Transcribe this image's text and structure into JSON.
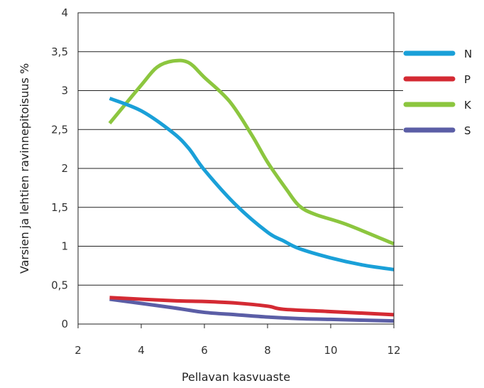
{
  "chart_data": {
    "type": "line",
    "xlabel": "Pellavan kasvuaste",
    "ylabel": "Varsien ja lehtien ravinnepitoisuus %",
    "xlim": [
      2,
      12
    ],
    "ylim": [
      0,
      4
    ],
    "x_ticks": [
      {
        "value": 2,
        "label": "2"
      },
      {
        "value": 4,
        "label": "4"
      },
      {
        "value": 6,
        "label": "6"
      },
      {
        "value": 8,
        "label": "8"
      },
      {
        "value": 10,
        "label": "10"
      },
      {
        "value": 12,
        "label": "12"
      }
    ],
    "y_ticks": [
      {
        "value": 0,
        "label": "0"
      },
      {
        "value": 0.5,
        "label": "0,5"
      },
      {
        "value": 1,
        "label": "1"
      },
      {
        "value": 1.5,
        "label": "1,5"
      },
      {
        "value": 2,
        "label": "2"
      },
      {
        "value": 2.5,
        "label": "2,5"
      },
      {
        "value": 3,
        "label": "3"
      },
      {
        "value": 3.5,
        "label": "3,5"
      },
      {
        "value": 4,
        "label": "4"
      }
    ],
    "grid": "horizontal",
    "legend_position": "right",
    "series": [
      {
        "name": "N",
        "color": "#1aa0d8",
        "x": [
          3.0,
          4.0,
          5.0,
          5.5,
          6.0,
          7.0,
          8.0,
          8.5,
          9.0,
          10.0,
          11.0,
          12.0
        ],
        "y": [
          2.9,
          2.74,
          2.46,
          2.26,
          1.98,
          1.53,
          1.18,
          1.07,
          0.97,
          0.85,
          0.76,
          0.7
        ]
      },
      {
        "name": "P",
        "color": "#d42a33",
        "x": [
          3.0,
          5.0,
          6.0,
          7.0,
          8.0,
          8.5,
          10.0,
          12.0
        ],
        "y": [
          0.34,
          0.3,
          0.29,
          0.27,
          0.23,
          0.19,
          0.16,
          0.12
        ]
      },
      {
        "name": "K",
        "color": "#8cc63f",
        "x": [
          3.0,
          4.0,
          4.5,
          5.0,
          5.5,
          6.0,
          6.8,
          7.5,
          8.0,
          8.6,
          9.0,
          9.5,
          10.5,
          12.0
        ],
        "y": [
          2.58,
          3.07,
          3.3,
          3.38,
          3.36,
          3.17,
          2.86,
          2.43,
          2.08,
          1.73,
          1.52,
          1.41,
          1.28,
          1.03
        ]
      },
      {
        "name": "S",
        "color": "#5b5ea6",
        "x": [
          3.0,
          5.0,
          6.0,
          7.0,
          8.0,
          9.0,
          10.0,
          12.0
        ],
        "y": [
          0.32,
          0.21,
          0.15,
          0.12,
          0.09,
          0.07,
          0.06,
          0.04
        ]
      }
    ]
  }
}
